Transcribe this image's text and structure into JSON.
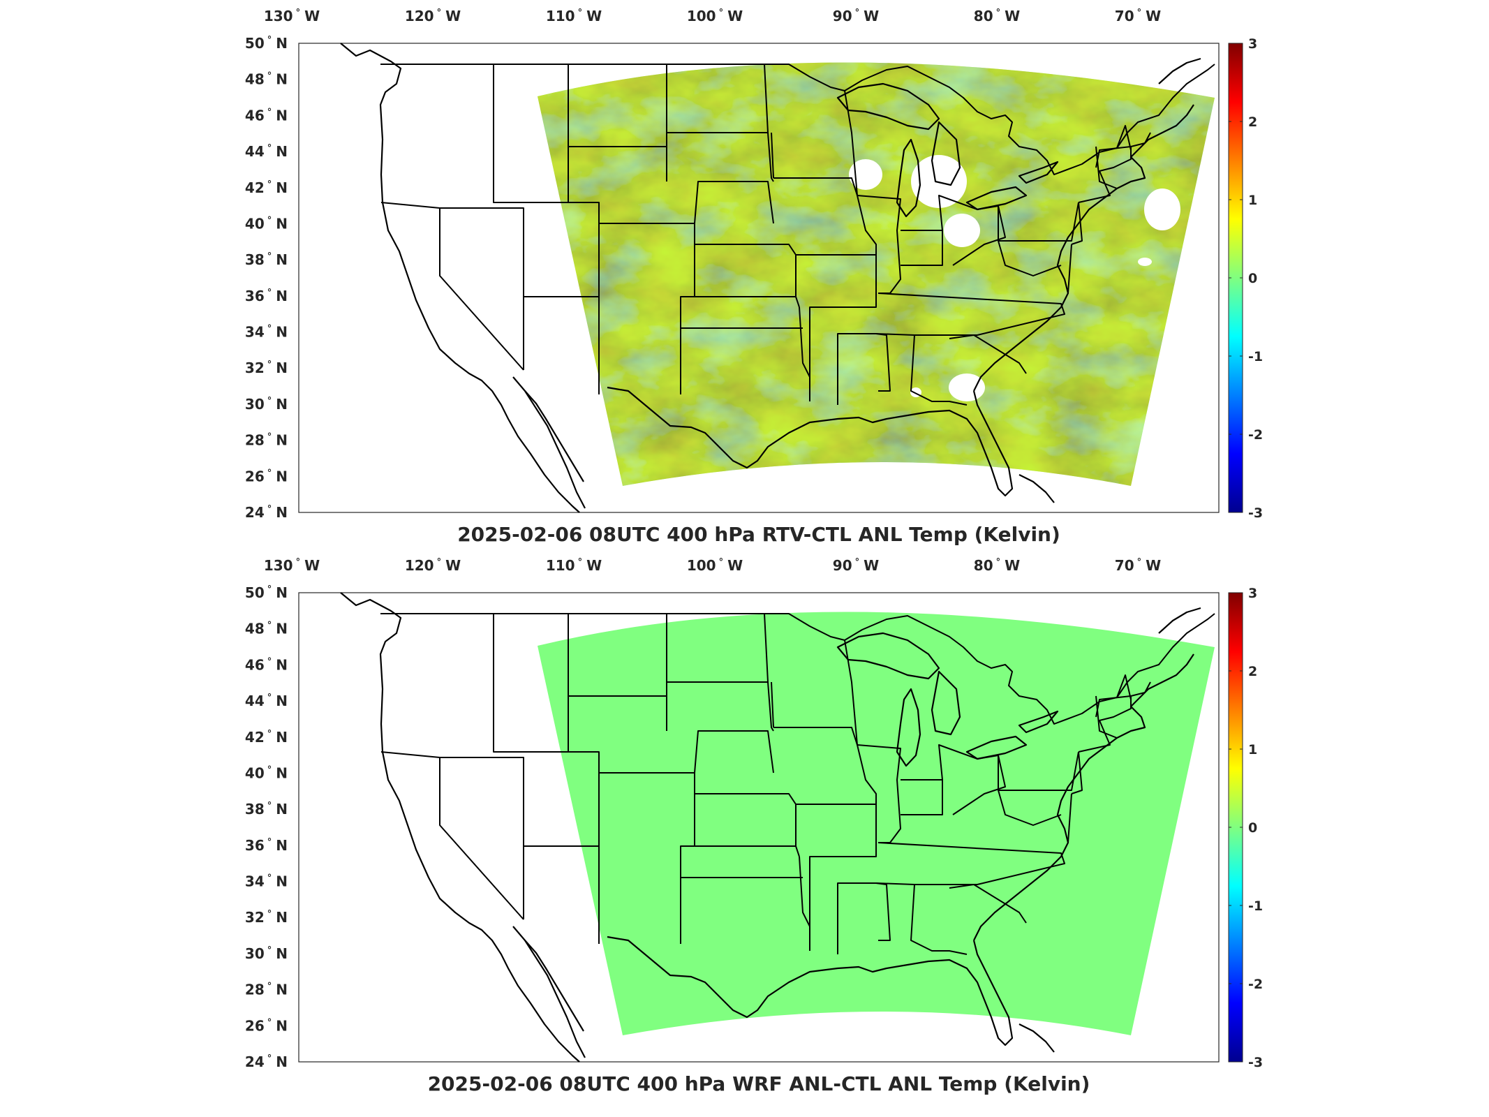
{
  "panels": [
    {
      "title": "2025-02-06 08UTC 400 hPa RTV-CTL ANL Temp (Kelvin)",
      "field": "RTV-CTL difference (noisy, mostly -0.5 to +0.8 K)",
      "fill_color": "#7fe67a"
    },
    {
      "title": "2025-02-06 08UTC 400 hPa WRF ANL-CTL ANL Temp (Kelvin)",
      "field": "uniform 0",
      "fill_color": "#80ff80"
    }
  ],
  "lon_ticks": [
    {
      "value": -130,
      "num": "130",
      "hem": "W"
    },
    {
      "value": -120,
      "num": "120",
      "hem": "W"
    },
    {
      "value": -110,
      "num": "110",
      "hem": "W"
    },
    {
      "value": -100,
      "num": "100",
      "hem": "W"
    },
    {
      "value": -90,
      "num": "90",
      "hem": "W"
    },
    {
      "value": -80,
      "num": "80",
      "hem": "W"
    },
    {
      "value": -70,
      "num": "70",
      "hem": "W"
    }
  ],
  "lat_ticks": [
    {
      "value": 50,
      "num": "50",
      "hem": "N"
    },
    {
      "value": 48,
      "num": "48",
      "hem": "N"
    },
    {
      "value": 46,
      "num": "46",
      "hem": "N"
    },
    {
      "value": 44,
      "num": "44",
      "hem": "N"
    },
    {
      "value": 42,
      "num": "42",
      "hem": "N"
    },
    {
      "value": 40,
      "num": "40",
      "hem": "N"
    },
    {
      "value": 38,
      "num": "38",
      "hem": "N"
    },
    {
      "value": 36,
      "num": "36",
      "hem": "N"
    },
    {
      "value": 34,
      "num": "34",
      "hem": "N"
    },
    {
      "value": 32,
      "num": "32",
      "hem": "N"
    },
    {
      "value": 30,
      "num": "30",
      "hem": "N"
    },
    {
      "value": 28,
      "num": "28",
      "hem": "N"
    },
    {
      "value": 26,
      "num": "26",
      "hem": "N"
    },
    {
      "value": 24,
      "num": "24",
      "hem": "N"
    }
  ],
  "colorbar": {
    "min": -3,
    "max": 3,
    "ticks": [
      "3",
      "2",
      "1",
      "0",
      "-1",
      "-2",
      "-3"
    ],
    "colormap": "jet"
  }
}
